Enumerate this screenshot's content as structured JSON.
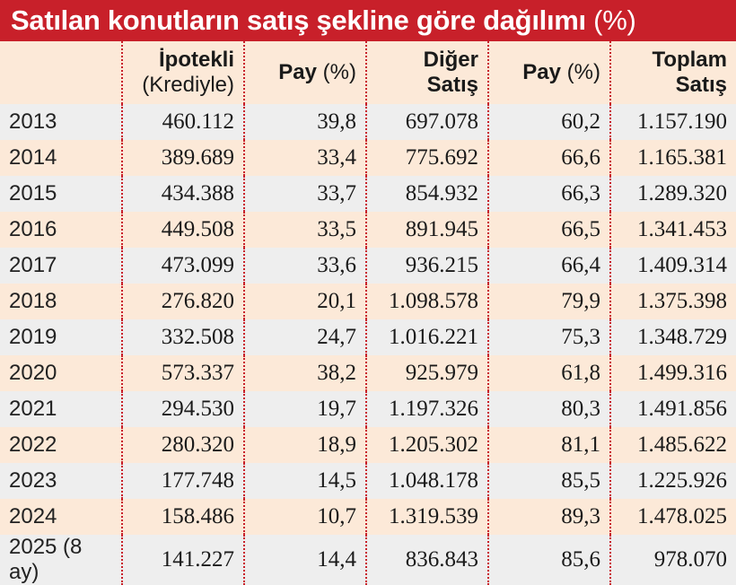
{
  "title": {
    "main": "Satılan konutların satış şekline göre dağılımı",
    "unit": "(%)"
  },
  "colors": {
    "title_bg": "#c8202a",
    "row_odd": "#eeeeee",
    "row_even": "#fce9d8",
    "divider": "#c8202a"
  },
  "header": {
    "col1": {
      "line1": "İpotekli",
      "line2": "(Krediyle)"
    },
    "col2": {
      "label": "Pay",
      "unit": "(%)"
    },
    "col3": {
      "line1": "Diğer",
      "line2": "Satış"
    },
    "col4": {
      "label": "Pay",
      "unit": "(%)"
    },
    "col5": {
      "line1": "Toplam",
      "line2": "Satış"
    }
  },
  "rows": [
    [
      "2013",
      "460.112",
      "39,8",
      "697.078",
      "60,2",
      "1.157.190"
    ],
    [
      "2014",
      "389.689",
      "33,4",
      "775.692",
      "66,6",
      "1.165.381"
    ],
    [
      "2015",
      "434.388",
      "33,7",
      "854.932",
      "66,3",
      "1.289.320"
    ],
    [
      "2016",
      "449.508",
      "33,5",
      "891.945",
      "66,5",
      "1.341.453"
    ],
    [
      "2017",
      "473.099",
      "33,6",
      "936.215",
      "66,4",
      "1.409.314"
    ],
    [
      "2018",
      "276.820",
      "20,1",
      "1.098.578",
      "79,9",
      "1.375.398"
    ],
    [
      "2019",
      "332.508",
      "24,7",
      "1.016.221",
      "75,3",
      "1.348.729"
    ],
    [
      "2020",
      "573.337",
      "38,2",
      "925.979",
      "61,8",
      "1.499.316"
    ],
    [
      "2021",
      "294.530",
      "19,7",
      "1.197.326",
      "80,3",
      "1.491.856"
    ],
    [
      "2022",
      "280.320",
      "18,9",
      "1.205.302",
      "81,1",
      "1.485.622"
    ],
    [
      "2023",
      "177.748",
      "14,5",
      "1.048.178",
      "85,5",
      "1.225.926"
    ],
    [
      "2024",
      "158.486",
      "10,7",
      "1.319.539",
      "89,3",
      "1.478.025"
    ],
    [
      "2025 (8 ay)",
      "141.227",
      "14,4",
      "836.843",
      "85,6",
      "978.070"
    ]
  ],
  "chart_data": {
    "type": "table",
    "title": "Satılan konutların satış şekline göre dağılımı (%)",
    "columns": [
      "",
      "İpotekli (Krediyle)",
      "Pay (%)",
      "Diğer Satış",
      "Pay (%)",
      "Toplam Satış"
    ],
    "categories": [
      "2013",
      "2014",
      "2015",
      "2016",
      "2017",
      "2018",
      "2019",
      "2020",
      "2021",
      "2022",
      "2023",
      "2024",
      "2025 (8 ay)"
    ],
    "series": [
      {
        "name": "İpotekli (Krediyle)",
        "values": [
          460112,
          389689,
          434388,
          449508,
          473099,
          276820,
          332508,
          573337,
          294530,
          280320,
          177748,
          158486,
          141227
        ]
      },
      {
        "name": "Pay (%)",
        "values": [
          39.8,
          33.4,
          33.7,
          33.5,
          33.6,
          20.1,
          24.7,
          38.2,
          19.7,
          18.9,
          14.5,
          10.7,
          14.4
        ]
      },
      {
        "name": "Diğer Satış",
        "values": [
          697078,
          775692,
          854932,
          891945,
          936215,
          1098578,
          1016221,
          925979,
          1197326,
          1205302,
          1048178,
          1319539,
          836843
        ]
      },
      {
        "name": "Pay (%)",
        "values": [
          60.2,
          66.6,
          66.3,
          66.5,
          66.4,
          79.9,
          75.3,
          61.8,
          80.3,
          81.1,
          85.5,
          89.3,
          85.6
        ]
      },
      {
        "name": "Toplam Satış",
        "values": [
          1157190,
          1165381,
          1289320,
          1341453,
          1409314,
          1375398,
          1348729,
          1499316,
          1491856,
          1485622,
          1225926,
          1478025,
          978070
        ]
      }
    ]
  }
}
